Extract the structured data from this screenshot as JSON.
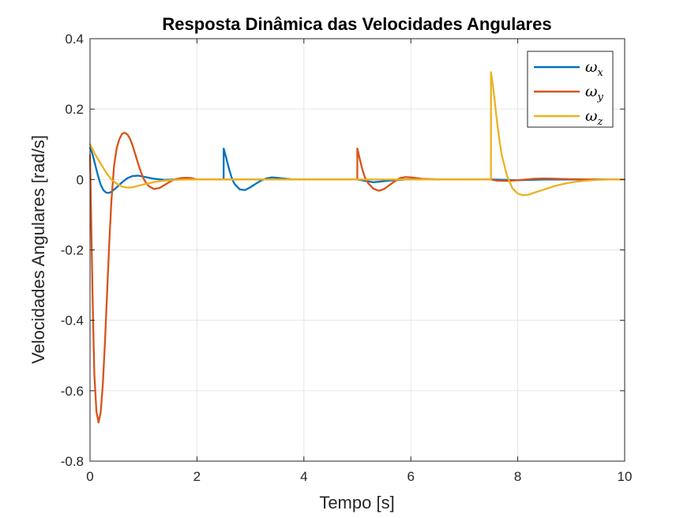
{
  "chart_data": {
    "type": "line",
    "title": "Resposta Dinâmica das Velocidades Angulares",
    "xlabel": "Tempo [s]",
    "ylabel": "Velocidades Angulares [rad/s]",
    "xlim": [
      0,
      10
    ],
    "ylim": [
      -0.8,
      0.4
    ],
    "xticks": [
      0,
      2,
      4,
      6,
      8,
      10
    ],
    "xtick_labels": [
      "0",
      "2",
      "4",
      "6",
      "8",
      "10"
    ],
    "yticks": [
      -0.8,
      -0.6,
      -0.4,
      -0.2,
      0,
      0.2,
      0.4
    ],
    "ytick_labels": [
      "-0.8",
      "-0.6",
      "-0.4",
      "-0.2",
      "0",
      "0.2",
      "0.4"
    ],
    "grid": true,
    "legend_position": "top-right",
    "series": [
      {
        "name": "ω_x",
        "legend_main": "ω",
        "legend_sub": "x",
        "color": "#0072BD",
        "x": [
          0,
          0.05,
          0.1,
          0.15,
          0.2,
          0.25,
          0.3,
          0.35,
          0.4,
          0.5,
          0.6,
          0.7,
          0.8,
          0.9,
          1.0,
          1.2,
          1.4,
          1.6,
          2.0,
          2.499,
          2.5,
          2.55,
          2.6,
          2.65,
          2.7,
          2.8,
          2.9,
          3.0,
          3.1,
          3.2,
          3.3,
          3.4,
          3.5,
          3.6,
          3.8,
          4.5,
          4.999,
          5.0,
          5.3,
          5.6,
          6.0,
          7.0,
          7.499,
          7.5,
          8.0,
          8.5,
          9.0,
          10.0
        ],
        "y": [
          0.09,
          0.07,
          0.04,
          0.01,
          -0.015,
          -0.03,
          -0.037,
          -0.038,
          -0.035,
          -0.022,
          -0.008,
          0.004,
          0.01,
          0.011,
          0.008,
          0.002,
          -0.001,
          0.0,
          0.0,
          0.0,
          0.088,
          0.06,
          0.03,
          0.005,
          -0.012,
          -0.028,
          -0.03,
          -0.022,
          -0.012,
          -0.003,
          0.003,
          0.006,
          0.005,
          0.003,
          0.0,
          0.0,
          0.0,
          0.0,
          -0.008,
          -0.003,
          0.001,
          0.0,
          0.0,
          0.0,
          -0.002,
          0.0,
          0.0,
          0.0
        ]
      },
      {
        "name": "ω_y",
        "legend_main": "ω",
        "legend_sub": "y",
        "color": "#D95319",
        "x": [
          0,
          0.02,
          0.05,
          0.08,
          0.12,
          0.16,
          0.2,
          0.24,
          0.28,
          0.32,
          0.36,
          0.4,
          0.45,
          0.5,
          0.55,
          0.6,
          0.65,
          0.7,
          0.75,
          0.8,
          0.85,
          0.9,
          0.95,
          1.0,
          1.05,
          1.1,
          1.2,
          1.3,
          1.4,
          1.5,
          1.6,
          1.7,
          1.8,
          1.9,
          2.0,
          3.0,
          4.999,
          5.0,
          5.02,
          5.05,
          5.1,
          5.15,
          5.2,
          5.3,
          5.4,
          5.5,
          5.6,
          5.7,
          5.8,
          5.9,
          6.0,
          6.2,
          6.5,
          7.0,
          7.499,
          7.5,
          7.6,
          7.8,
          8.0,
          8.3,
          8.5,
          9.0,
          9.5,
          10.0
        ],
        "y": [
          0.07,
          -0.1,
          -0.35,
          -0.55,
          -0.66,
          -0.69,
          -0.66,
          -0.58,
          -0.46,
          -0.32,
          -0.18,
          -0.06,
          0.04,
          0.09,
          0.115,
          0.13,
          0.133,
          0.128,
          0.115,
          0.095,
          0.07,
          0.045,
          0.022,
          0.003,
          -0.01,
          -0.019,
          -0.027,
          -0.024,
          -0.015,
          -0.006,
          0.001,
          0.004,
          0.005,
          0.004,
          0.0,
          0.0,
          0.0,
          0.088,
          0.075,
          0.055,
          0.025,
          0.003,
          -0.01,
          -0.026,
          -0.032,
          -0.027,
          -0.016,
          -0.005,
          0.004,
          0.007,
          0.006,
          0.002,
          0.0,
          0.0,
          0.0,
          0.0,
          -0.003,
          -0.004,
          -0.002,
          0.002,
          0.003,
          0.001,
          0.0,
          0.0
        ]
      },
      {
        "name": "ω_z",
        "legend_main": "ω",
        "legend_sub": "z",
        "color": "#EDB120",
        "x": [
          0,
          0.1,
          0.2,
          0.3,
          0.4,
          0.5,
          0.6,
          0.7,
          0.8,
          0.9,
          1.0,
          1.2,
          1.4,
          1.6,
          1.8,
          2.0,
          3.0,
          4.0,
          5.0,
          6.0,
          7.0,
          7.499,
          7.5,
          7.55,
          7.6,
          7.65,
          7.7,
          7.8,
          7.9,
          8.0,
          8.1,
          8.2,
          8.3,
          8.5,
          8.7,
          8.9,
          9.1,
          9.3,
          9.5,
          9.7,
          10.0
        ],
        "y": [
          0.1,
          0.07,
          0.045,
          0.02,
          0.0,
          -0.012,
          -0.02,
          -0.023,
          -0.022,
          -0.018,
          -0.014,
          -0.007,
          -0.003,
          -0.001,
          0.0,
          0.0,
          0.0,
          0.0,
          0.0,
          0.0,
          0.0,
          0.0,
          0.305,
          0.25,
          0.18,
          0.12,
          0.07,
          0.01,
          -0.025,
          -0.04,
          -0.045,
          -0.043,
          -0.038,
          -0.028,
          -0.018,
          -0.011,
          -0.006,
          -0.003,
          -0.001,
          0.0,
          0.0
        ]
      }
    ]
  }
}
